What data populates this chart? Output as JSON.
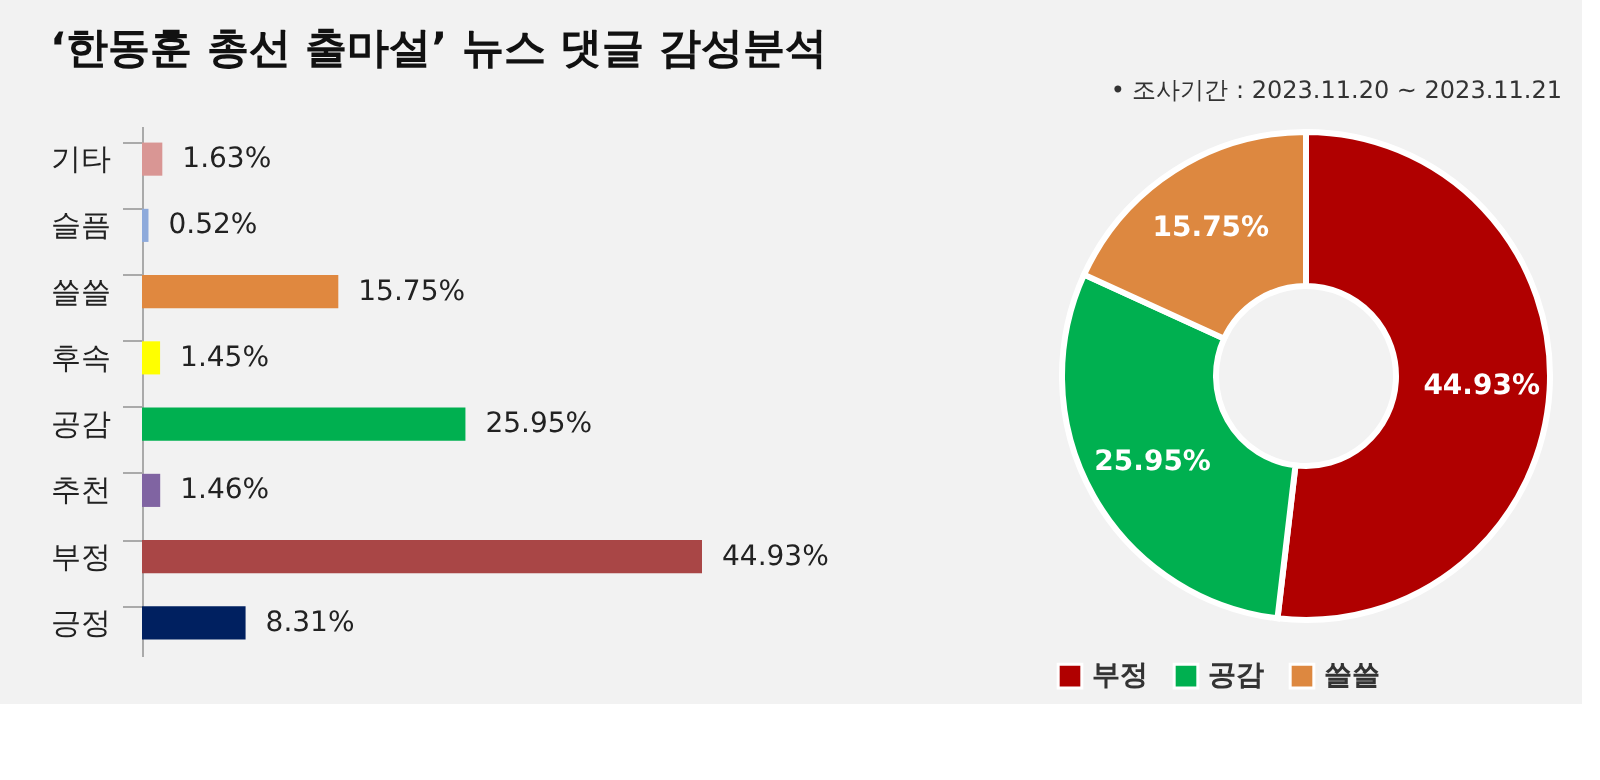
{
  "chart_data": [
    {
      "type": "bar",
      "orientation": "horizontal",
      "title": "‘한동훈 총선 출마설’ 뉴스 댓글 감성분석",
      "categories": [
        "기타",
        "슬픔",
        "쓸쓸",
        "후속",
        "공감",
        "추천",
        "부정",
        "긍정"
      ],
      "legend": false,
      "values": [
        1.63,
        0.52,
        15.75,
        1.45,
        25.95,
        1.46,
        44.93,
        8.31
      ],
      "colors": [
        "#d99694",
        "#8eaadb",
        "#e0883f",
        "#ffff00",
        "#00b050",
        "#8064a2",
        "#a94646",
        "#002060"
      ],
      "value_labels": [
        "1.63%",
        "0.52%",
        "15.75%",
        "1.45%",
        "25.95%",
        "1.46%",
        "44.93%",
        "8.31%"
      ]
    },
    {
      "type": "donut",
      "annotations": [
        "•   조사기간 : 2023.11.20 ~ 2023.11.21"
      ],
      "categories": [
        "부정",
        "공감",
        "쓸쓸"
      ],
      "values": [
        44.93,
        25.95,
        15.75
      ],
      "colors": [
        "#b00000",
        "#00b050",
        "#dd8840"
      ],
      "value_labels": [
        "44.93%",
        "25.95%",
        "15.75%"
      ],
      "legend": "bottom"
    }
  ]
}
